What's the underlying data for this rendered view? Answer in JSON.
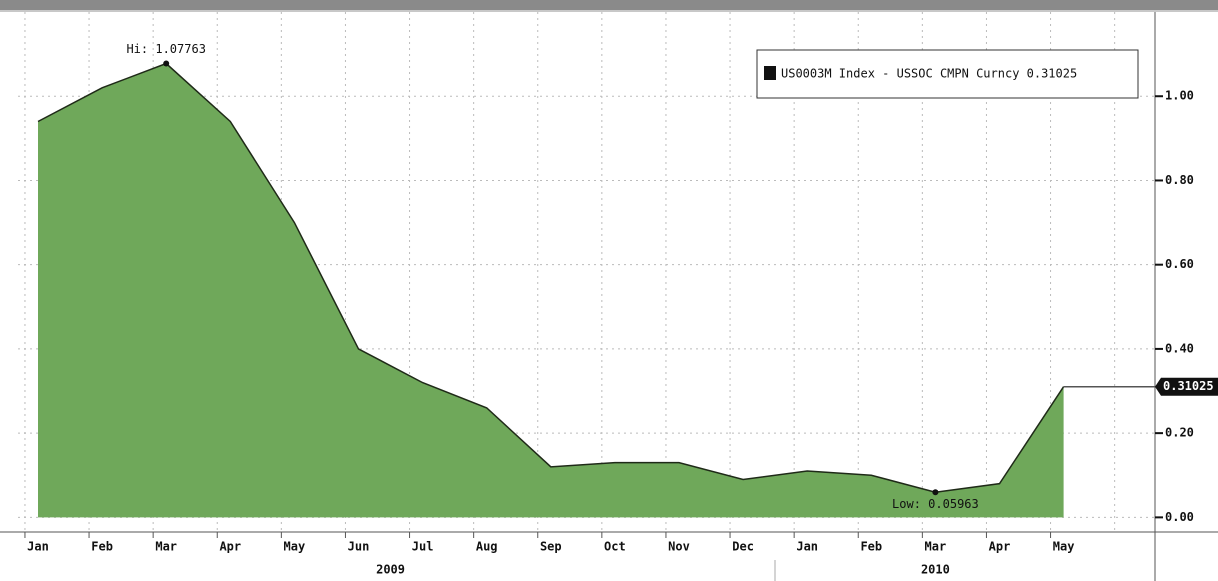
{
  "chart_data": {
    "type": "area",
    "categories": [
      "Jan",
      "Feb",
      "Mar",
      "Apr",
      "May",
      "Jun",
      "Jul",
      "Aug",
      "Sep",
      "Oct",
      "Nov",
      "Dec",
      "Jan",
      "Feb",
      "Mar",
      "Apr",
      "May"
    ],
    "year_labels": [
      "2009",
      "2010"
    ],
    "series": [
      {
        "name": "US0003M Index - USSOC CMPN Curncy 0.31025",
        "color": "#6fa85a",
        "line_color": "#1f2a18",
        "values": [
          0.94,
          1.02,
          1.07763,
          0.94,
          0.7,
          0.4,
          0.32,
          0.26,
          0.12,
          0.13,
          0.13,
          0.09,
          0.11,
          0.1,
          0.05963,
          0.08,
          0.31025
        ]
      }
    ],
    "annotations": [
      "Hi: 1.07763",
      "Low: 0.05963"
    ],
    "last_label": "0.31025",
    "ylim": [
      -0.03,
      1.2
    ],
    "yticks": [
      {
        "value": 0,
        "label": "0.00"
      },
      {
        "value": 0.2,
        "label": "0.20"
      },
      {
        "value": 0.4,
        "label": "0.40"
      },
      {
        "value": 0.6,
        "label": "0.60"
      },
      {
        "value": 0.8,
        "label": "0.80"
      },
      {
        "value": 1,
        "label": "1.00"
      }
    ],
    "grid": true
  }
}
